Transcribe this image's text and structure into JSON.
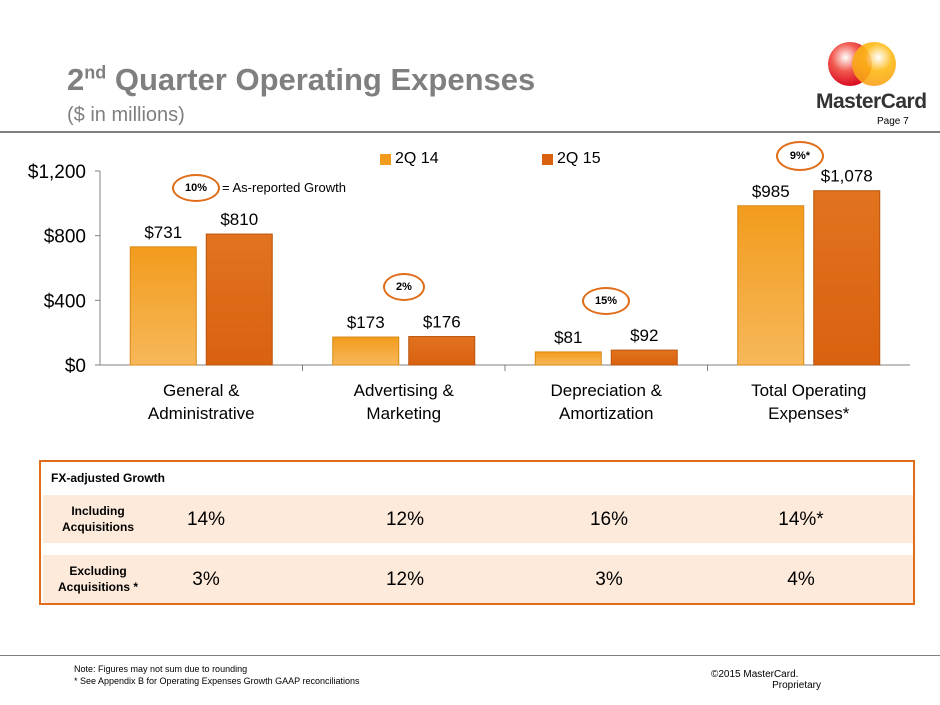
{
  "header": {
    "title_main": "2",
    "title_sup": "nd",
    "title_rest": " Quarter Operating Expenses",
    "subtitle": "($ in millions)",
    "logo_text": "MasterCard",
    "page_label": "Page 7"
  },
  "colors": {
    "accent": "#e06d1a",
    "series1": "#f29b1d",
    "series2": "#d9610f",
    "band": "#fdeada",
    "title_gray": "#7f7f7f"
  },
  "chart_data": {
    "type": "bar",
    "categories": [
      "General & Administrative",
      "Advertising & Marketing",
      "Depreciation & Amortization",
      "Total Operating Expenses*"
    ],
    "category_lines": [
      [
        "General &",
        "Administrative"
      ],
      [
        "Advertising  &",
        "Marketing"
      ],
      [
        "Depreciation &",
        "Amortization"
      ],
      [
        "Total Operating",
        "Expenses*"
      ]
    ],
    "series": [
      {
        "name": "2Q 14",
        "values": [
          731,
          173,
          81,
          985
        ],
        "labels": [
          "$731",
          "$173",
          "$81",
          "$985"
        ]
      },
      {
        "name": "2Q 15",
        "values": [
          810,
          176,
          92,
          1078
        ],
        "labels": [
          "$810",
          "$176",
          "$92",
          "$1,078"
        ]
      }
    ],
    "ylim": [
      0,
      1200
    ],
    "yticks": [
      0,
      400,
      800,
      1200
    ],
    "ytick_labels": [
      "$0",
      "$400",
      "$800",
      "$1,200"
    ],
    "growth": [
      "10%",
      "2%",
      "15%",
      "9%*"
    ],
    "growth_note": "= As-reported Growth",
    "legend_position": "top"
  },
  "fx_table": {
    "title": "FX-adjusted Growth",
    "rows": [
      {
        "label_line1": "Including",
        "label_line2": "Acquisitions",
        "values": [
          "14%",
          "12%",
          "16%",
          "14%*"
        ]
      },
      {
        "label_line1": "Excluding",
        "label_line2": "Acquisitions *",
        "values": [
          "3%",
          "12%",
          "3%",
          "4%"
        ]
      }
    ]
  },
  "footer": {
    "note1": "Note:  Figures may not sum due to rounding",
    "note2": "* See Appendix B for Operating Expenses Growth GAAP reconciliations",
    "copyright1": "©2015 MasterCard.",
    "copyright2": "Proprietary"
  }
}
